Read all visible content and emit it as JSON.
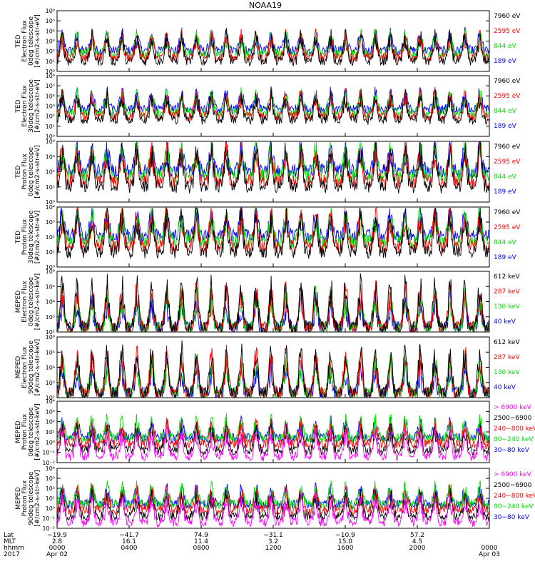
{
  "title": "NOAA19",
  "colors": {
    "black": "#000000",
    "blue": "#0000ff",
    "red": "#ff0000",
    "green": "#00e000",
    "magenta": "#ff00ff"
  },
  "chart_data": {
    "type": "line",
    "x_label_row_titles": [
      "Lat",
      "MLT",
      "hhmm",
      "2017"
    ],
    "x_ticks": [
      {
        "lat": "−19.9",
        "mlt": "2.8",
        "hhmm": "0000",
        "date": "Apr 02"
      },
      {
        "lat": "−41.7",
        "mlt": "16.1",
        "hhmm": "0400",
        "date": ""
      },
      {
        "lat": "74.9",
        "mlt": "11.4",
        "hhmm": "0800",
        "date": ""
      },
      {
        "lat": "−31.1",
        "mlt": "3.2",
        "hhmm": "1200",
        "date": ""
      },
      {
        "lat": "−10.9",
        "mlt": "15.0",
        "hhmm": "1600",
        "date": ""
      },
      {
        "lat": "57.2",
        "mlt": "4.5",
        "hhmm": "2000",
        "date": ""
      },
      {
        "lat": "",
        "mlt": "",
        "hhmm": "0000",
        "date": "Apr 03"
      }
    ],
    "panels": [
      {
        "ylabel": [
          "TED",
          "Electron Flux",
          "0deg telescope",
          "[#/cm2-s-str-eV]"
        ],
        "yticks": [
          "10⁰",
          "10¹",
          "10²",
          "10³",
          "10⁴",
          "10⁵",
          "10⁶"
        ],
        "ylog": [
          0,
          6
        ],
        "legend": [
          {
            "text": "7960 eV",
            "color": "black"
          },
          {
            "text": "2595 eV",
            "color": "red"
          },
          {
            "text": "844 eV",
            "color": "green"
          },
          {
            "text": "189 eV",
            "color": "blue"
          }
        ]
      },
      {
        "ylabel": [
          "TED",
          "Electron Flux",
          "30deg telescope",
          "[#/cm2-s-str-eV]"
        ],
        "yticks": [
          "10⁰",
          "10¹",
          "10²",
          "10³",
          "10⁴",
          "10⁵",
          "10⁶"
        ],
        "ylog": [
          0,
          6
        ],
        "legend": [
          {
            "text": "7960 eV",
            "color": "black"
          },
          {
            "text": "2595 eV",
            "color": "red"
          },
          {
            "text": "844 eV",
            "color": "green"
          },
          {
            "text": "189 eV",
            "color": "blue"
          }
        ]
      },
      {
        "ylabel": [
          "TED",
          "Proton Flux",
          "0deg telescope",
          "[#/cm2-s-str-eV]"
        ],
        "yticks": [
          "10⁰",
          "10¹",
          "10²",
          "10³",
          "10⁴"
        ],
        "ylog": [
          0,
          4
        ],
        "legend": [
          {
            "text": "7960 eV",
            "color": "black"
          },
          {
            "text": "2595 eV",
            "color": "red"
          },
          {
            "text": "844 eV",
            "color": "green"
          },
          {
            "text": "189 eV",
            "color": "blue"
          }
        ]
      },
      {
        "ylabel": [
          "TED",
          "Proton Flux",
          "30deg telescope",
          "[#/cm2-s-str-eV]"
        ],
        "yticks": [
          "10⁰",
          "10¹",
          "10²",
          "10³",
          "10⁴"
        ],
        "ylog": [
          0,
          4
        ],
        "legend": [
          {
            "text": "7960 eV",
            "color": "black"
          },
          {
            "text": "2595 eV",
            "color": "red"
          },
          {
            "text": "844 eV",
            "color": "green"
          },
          {
            "text": "189 eV",
            "color": "blue"
          }
        ]
      },
      {
        "ylabel": [
          "MEPED",
          "Electron Flux",
          "0deg telescope",
          "[#/cm2-s-str-keV]"
        ],
        "yticks": [
          "10²",
          "10³",
          "10⁴",
          "10⁵",
          "10⁶"
        ],
        "ylog": [
          2,
          6
        ],
        "legend": [
          {
            "text": "612 keV",
            "color": "black"
          },
          {
            "text": "287 keV",
            "color": "red"
          },
          {
            "text": "130 keV",
            "color": "green"
          },
          {
            "text": "40 keV",
            "color": "blue"
          }
        ]
      },
      {
        "ylabel": [
          "MEPED",
          "Electron Flux",
          "90deg telescope",
          "[#/cm2-s-str-keV]"
        ],
        "yticks": [
          "10²",
          "10³",
          "10⁴",
          "10⁵",
          "10⁶"
        ],
        "ylog": [
          2,
          6
        ],
        "legend": [
          {
            "text": "612 keV",
            "color": "black"
          },
          {
            "text": "287 keV",
            "color": "red"
          },
          {
            "text": "130 keV",
            "color": "green"
          },
          {
            "text": "40 keV",
            "color": "blue"
          }
        ]
      },
      {
        "ylabel": [
          "MEPED",
          "Proton Flux",
          "0deg telescope",
          "[#/cm2-s-str-keV]"
        ],
        "yticks": [
          "10⁻²",
          "10⁻¹",
          "10⁰",
          "10¹",
          "10²",
          "10³",
          "10⁴"
        ],
        "ylog": [
          -2,
          4
        ],
        "legend": [
          {
            "text": "> 6900 keV",
            "color": "magenta"
          },
          {
            "text": "2500−6900",
            "color": "black"
          },
          {
            "text": "240−800 keV",
            "color": "red"
          },
          {
            "text": "80−240 keV",
            "color": "green"
          },
          {
            "text": "30−80 keV",
            "color": "blue"
          }
        ]
      },
      {
        "ylabel": [
          "MEPED",
          "Proton Flux",
          "90deg telescope",
          "[#/cm2-s-str-keV]"
        ],
        "yticks": [
          "10⁻²",
          "10⁻¹",
          "10⁰",
          "10¹",
          "10²",
          "10³",
          "10⁴"
        ],
        "ylog": [
          -2,
          4
        ],
        "legend": [
          {
            "text": "> 6900 keV",
            "color": "magenta"
          },
          {
            "text": "2500−6900",
            "color": "black"
          },
          {
            "text": "240−800 keV",
            "color": "red"
          },
          {
            "text": "80−240 keV",
            "color": "green"
          },
          {
            "text": "30−80 keV",
            "color": "blue"
          }
        ]
      }
    ]
  }
}
